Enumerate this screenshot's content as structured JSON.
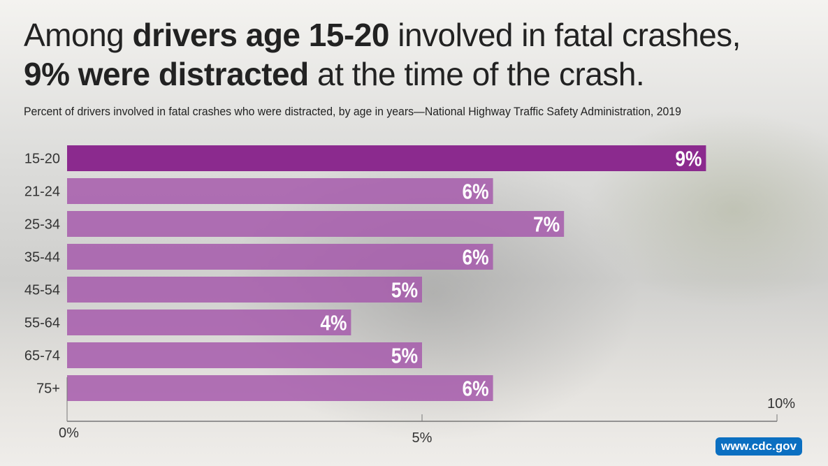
{
  "title": {
    "line1_pre": "Among ",
    "line1_bold": "drivers age 15-20",
    "line1_post": " involved in fatal crashes,",
    "line2_bold": "9% were distracted",
    "line2_post": " at the time of the crash."
  },
  "chart_data": {
    "type": "bar",
    "orientation": "horizontal",
    "subtitle": "Percent of drivers involved in fatal crashes who were distracted, by age in years—National Highway Traffic Safety Administration, 2019",
    "categories": [
      "15-20",
      "21-24",
      "25-34",
      "35-44",
      "45-54",
      "55-64",
      "65-74",
      "75+"
    ],
    "values": [
      9,
      6,
      7,
      6,
      5,
      4,
      5,
      6
    ],
    "data_labels": [
      "9%",
      "6%",
      "7%",
      "6%",
      "5%",
      "4%",
      "5%",
      "6%"
    ],
    "xlim": [
      0,
      10
    ],
    "x_ticks": [
      0,
      5,
      10
    ],
    "x_tick_labels": [
      "0%",
      "5%",
      "10%"
    ],
    "grid": false,
    "highlight_color": "#8b2a8e",
    "bar_color": "#a65aab"
  },
  "footer": {
    "site": "www.cdc.gov"
  }
}
